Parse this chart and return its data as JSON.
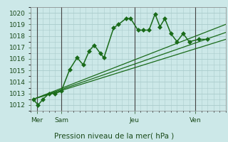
{
  "background_color": "#cce8e8",
  "grid_color": "#aacccc",
  "line_color": "#1a6b1a",
  "marker_color": "#1a6b1a",
  "xlabel": "Pression niveau de la mer( hPa )",
  "ylim": [
    1011.5,
    1020.5
  ],
  "yticks": [
    1012,
    1013,
    1014,
    1015,
    1016,
    1017,
    1018,
    1019,
    1020
  ],
  "xlim": [
    0,
    16
  ],
  "day_labels": [
    "Mer",
    "Sam",
    "Jeu",
    "Ven"
  ],
  "day_positions": [
    0.5,
    2.5,
    8.5,
    13.5
  ],
  "vline_positions": [
    0.5,
    2.5,
    8.5,
    13.5
  ],
  "series": [
    {
      "x": [
        0.2,
        0.6,
        1.0,
        1.5,
        2.0,
        2.5,
        3.2,
        3.8,
        4.3,
        4.8,
        5.2,
        5.7,
        6.0,
        6.8,
        7.2,
        7.8,
        8.2,
        8.8,
        9.2,
        9.7,
        10.2,
        10.6,
        11.0,
        11.5,
        12.0,
        12.5,
        13.0,
        13.8,
        14.5
      ],
      "y": [
        1012.5,
        1012.0,
        1012.5,
        1013.0,
        1013.0,
        1013.2,
        1015.1,
        1016.1,
        1015.5,
        1016.7,
        1017.2,
        1016.5,
        1016.1,
        1018.7,
        1019.0,
        1019.5,
        1019.5,
        1018.5,
        1018.5,
        1018.5,
        1019.9,
        1018.8,
        1019.5,
        1018.2,
        1017.5,
        1018.2,
        1017.5,
        1017.7,
        1017.7
      ],
      "marker": "D",
      "markersize": 3.0,
      "linewidth": 1.1,
      "zorder": 5
    },
    {
      "x": [
        0.2,
        16.0
      ],
      "y": [
        1012.5,
        1017.7
      ],
      "marker": null,
      "markersize": 0,
      "linewidth": 0.9,
      "zorder": 3
    },
    {
      "x": [
        0.2,
        16.0
      ],
      "y": [
        1012.5,
        1018.3
      ],
      "marker": null,
      "markersize": 0,
      "linewidth": 0.9,
      "zorder": 3
    },
    {
      "x": [
        0.2,
        16.0
      ],
      "y": [
        1012.5,
        1019.0
      ],
      "marker": null,
      "markersize": 0,
      "linewidth": 0.9,
      "zorder": 3
    }
  ]
}
